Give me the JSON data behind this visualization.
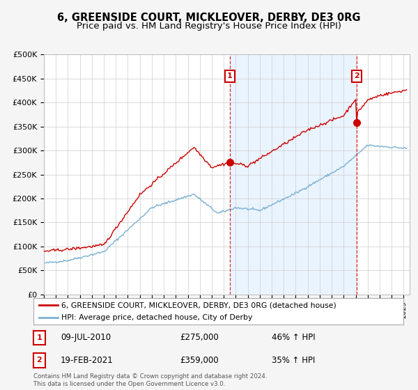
{
  "title": "6, GREENSIDE COURT, MICKLEOVER, DERBY, DE3 0RG",
  "subtitle": "Price paid vs. HM Land Registry's House Price Index (HPI)",
  "ylabel_ticks": [
    "£0",
    "£50K",
    "£100K",
    "£150K",
    "£200K",
    "£250K",
    "£300K",
    "£350K",
    "£400K",
    "£450K",
    "£500K"
  ],
  "ytick_values": [
    0,
    50000,
    100000,
    150000,
    200000,
    250000,
    300000,
    350000,
    400000,
    450000,
    500000
  ],
  "sale1_x": 2010.5,
  "sale1_price": 275000,
  "sale1_label": "09-JUL-2010",
  "sale1_pct": "46% ↑ HPI",
  "sale2_x": 2021.083,
  "sale2_price": 359000,
  "sale2_label": "19-FEB-2021",
  "sale2_pct": "35% ↑ HPI",
  "line_red_color": "#cc0000",
  "line_blue_color": "#7ab0d4",
  "shade_color": "#ddeeff",
  "background_color": "#f5f5f5",
  "plot_bg_color": "#ffffff",
  "grid_color": "#cccccc",
  "legend_line1": "6, GREENSIDE COURT, MICKLEOVER, DERBY, DE3 0RG (detached house)",
  "legend_line2": "HPI: Average price, detached house, City of Derby",
  "footer": "Contains HM Land Registry data © Crown copyright and database right 2024.\nThis data is licensed under the Open Government Licence v3.0."
}
